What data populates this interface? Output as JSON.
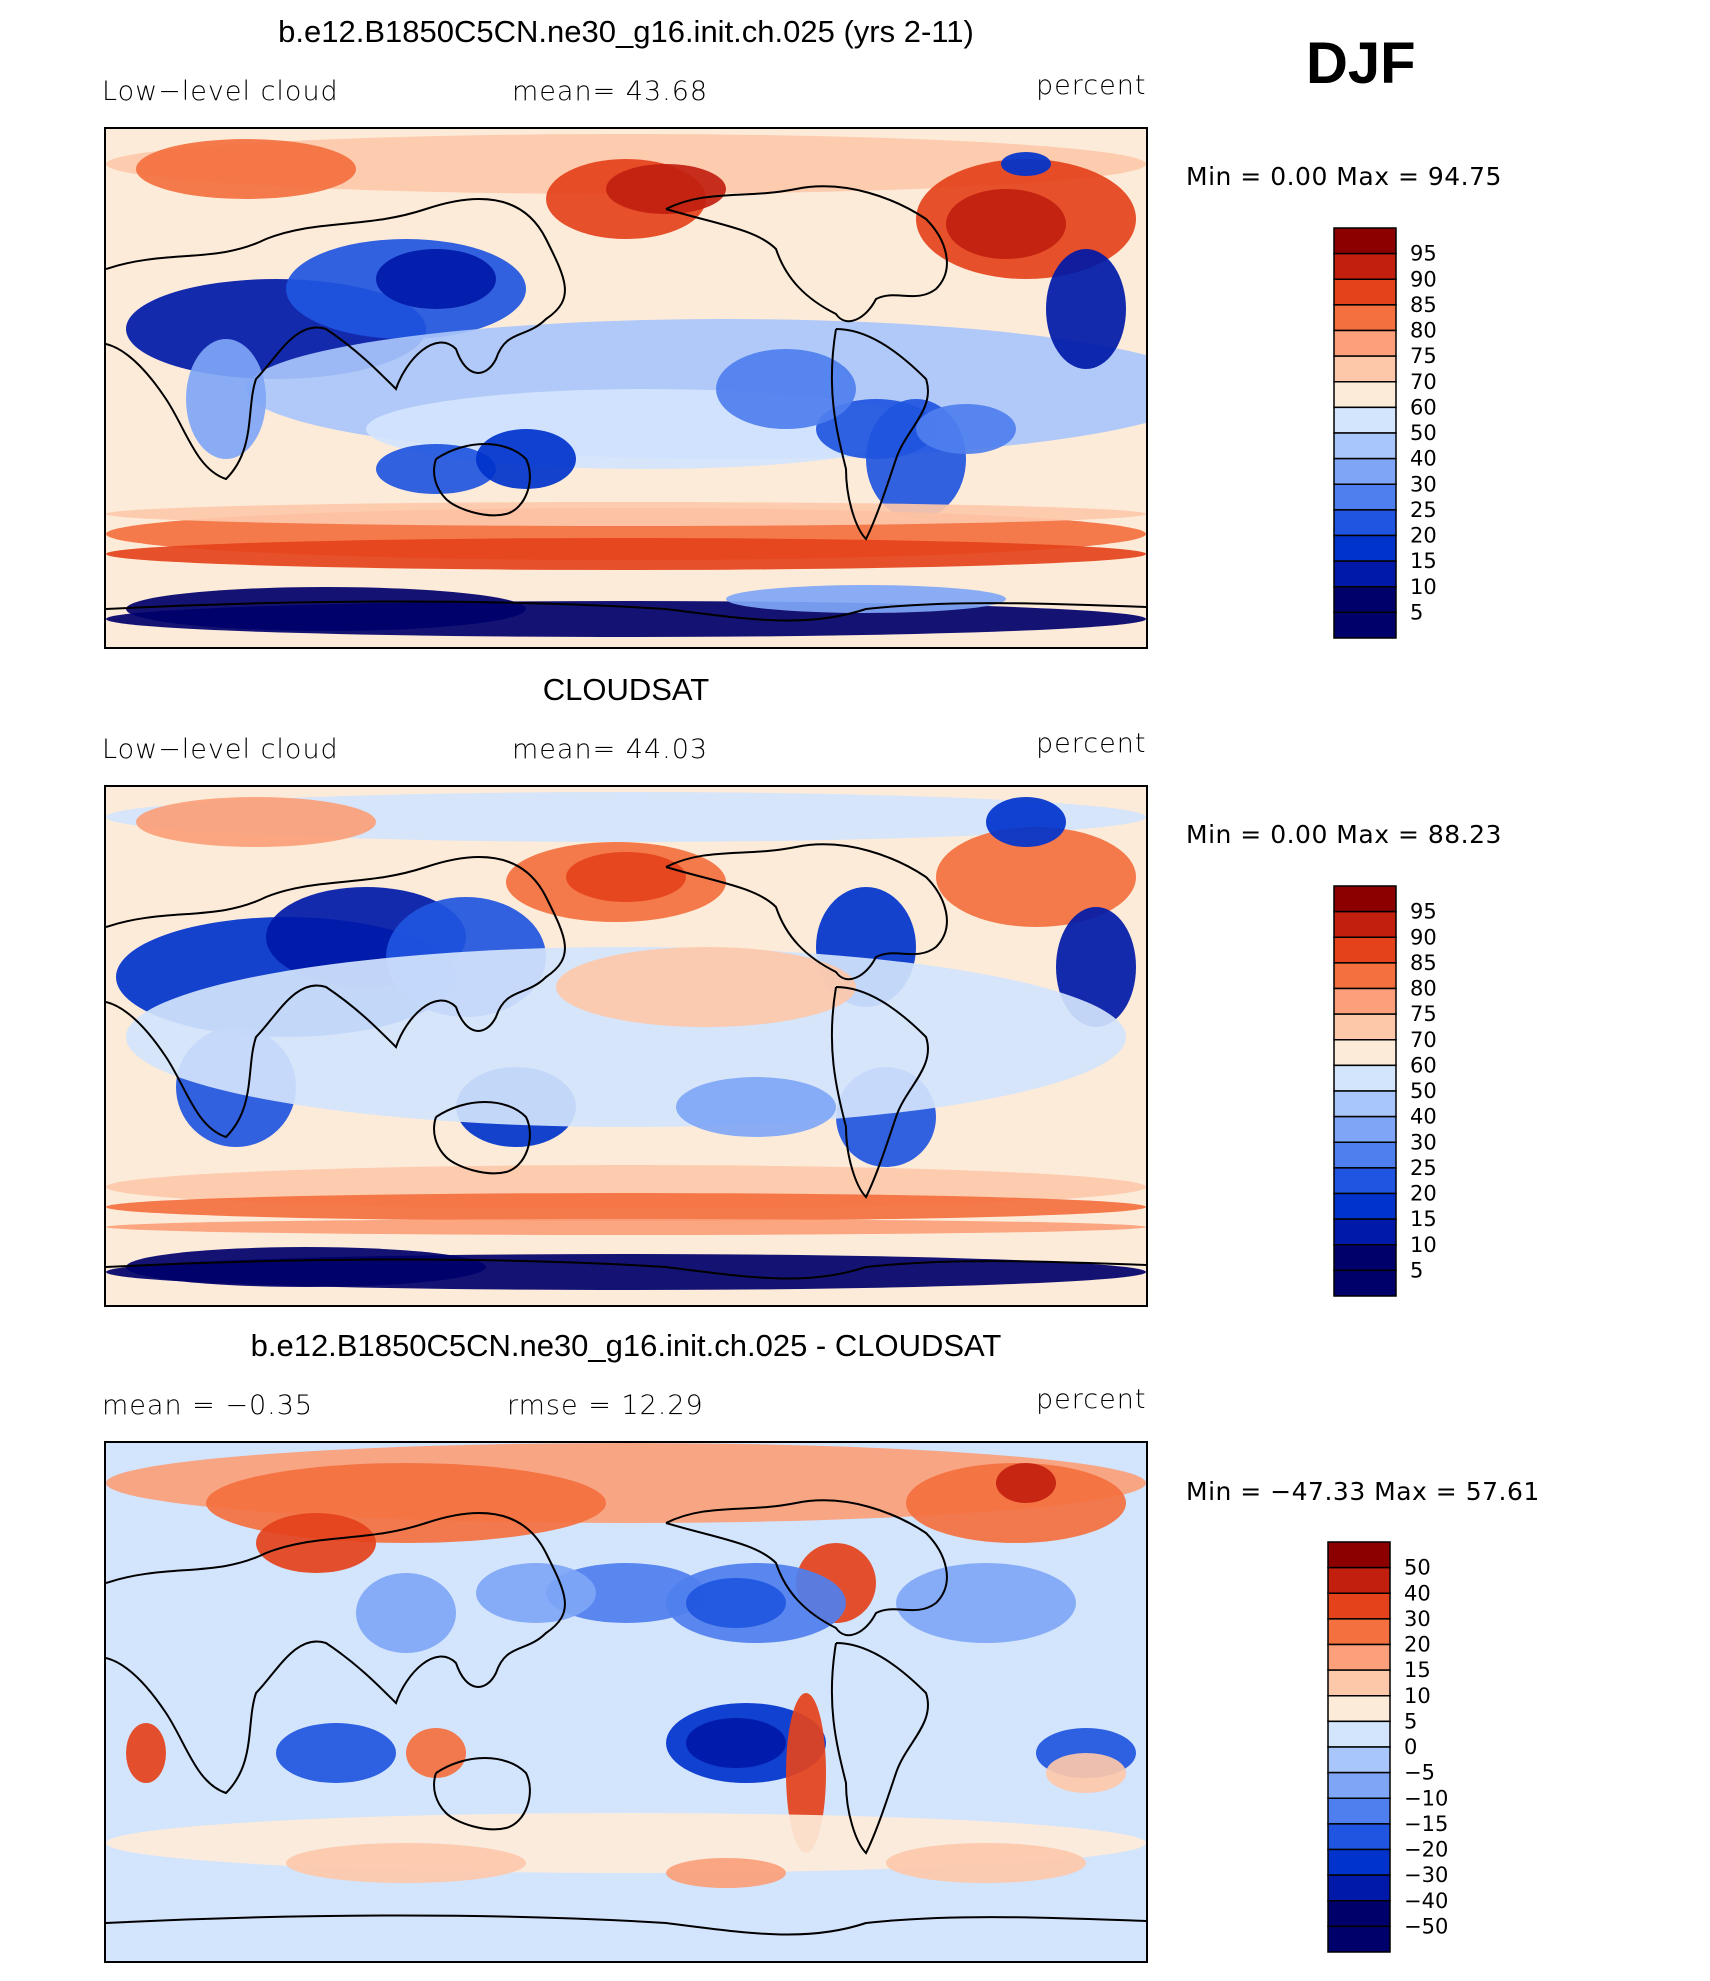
{
  "season": "DJF",
  "colors": {
    "abs": [
      "#00006b",
      "#0019a8",
      "#0033cc",
      "#1f55e0",
      "#4f7fee",
      "#7fa6f6",
      "#a9c6fb",
      "#d3e4fd",
      "#fdebd9",
      "#fdc8aa",
      "#fba07a",
      "#f4703f",
      "#e4421b",
      "#c21f0f",
      "#8c0000"
    ],
    "diff": [
      "#00006b",
      "#0019a8",
      "#0033cc",
      "#1f55e0",
      "#4f7fee",
      "#7fa6f6",
      "#a9c6fb",
      "#d3e4fd",
      "#fdebd9",
      "#fdc8aa",
      "#fba07a",
      "#f4703f",
      "#e4421b",
      "#c21f0f",
      "#8c0000"
    ]
  },
  "panels": [
    {
      "id": "model",
      "title": "b.e12.B1850C5CN.ne30_g16.init.ch.025 (yrs 2-11)",
      "left_label": "Low−level cloud",
      "center_label": "mean=   43.68",
      "right_label": "percent",
      "minmax": "Min  =     0.00  Max  =    94.75"
    },
    {
      "id": "obs",
      "title": "CLOUDSAT",
      "left_label": "Low−level cloud",
      "center_label": "mean=   44.03",
      "right_label": "percent",
      "minmax": "Min  =     0.00  Max  =    88.23"
    },
    {
      "id": "diff",
      "title": "b.e12.B1850C5CN.ne30_g16.init.ch.025 - CLOUDSAT",
      "left_label": "mean  =    −0.35",
      "center_label": "rmse  =    12.29",
      "right_label": "percent",
      "minmax": "Min  =  −47.33  Max  =    57.61"
    }
  ],
  "chart_data": [
    {
      "type": "heatmap",
      "title": "b.e12.B1850C5CN.ne30_g16.init.ch.025 (yrs 2-11)",
      "variable": "Low-level cloud",
      "units": "percent",
      "mean": 43.68,
      "min": 0.0,
      "max": 94.75,
      "colorbar_levels": [
        95,
        90,
        85,
        80,
        75,
        70,
        60,
        50,
        40,
        30,
        25,
        20,
        15,
        10,
        5
      ]
    },
    {
      "type": "heatmap",
      "title": "CLOUDSAT",
      "variable": "Low-level cloud",
      "units": "percent",
      "mean": 44.03,
      "min": 0.0,
      "max": 88.23,
      "colorbar_levels": [
        95,
        90,
        85,
        80,
        75,
        70,
        60,
        50,
        40,
        30,
        25,
        20,
        15,
        10,
        5
      ]
    },
    {
      "type": "heatmap",
      "title": "b.e12.B1850C5CN.ne30_g16.init.ch.025 - CLOUDSAT",
      "units": "percent",
      "mean": -0.35,
      "rmse": 12.29,
      "min": -47.33,
      "max": 57.61,
      "colorbar_levels": [
        50,
        40,
        30,
        20,
        15,
        10,
        5,
        0,
        -5,
        -10,
        -15,
        -20,
        -30,
        -40,
        -50
      ],
      "colorbar_labels": [
        "50",
        "40",
        "30",
        "20",
        "15",
        "10",
        "5",
        "0",
        "−5",
        "−10",
        "−15",
        "−20",
        "−30",
        "−40",
        "−50"
      ]
    }
  ]
}
